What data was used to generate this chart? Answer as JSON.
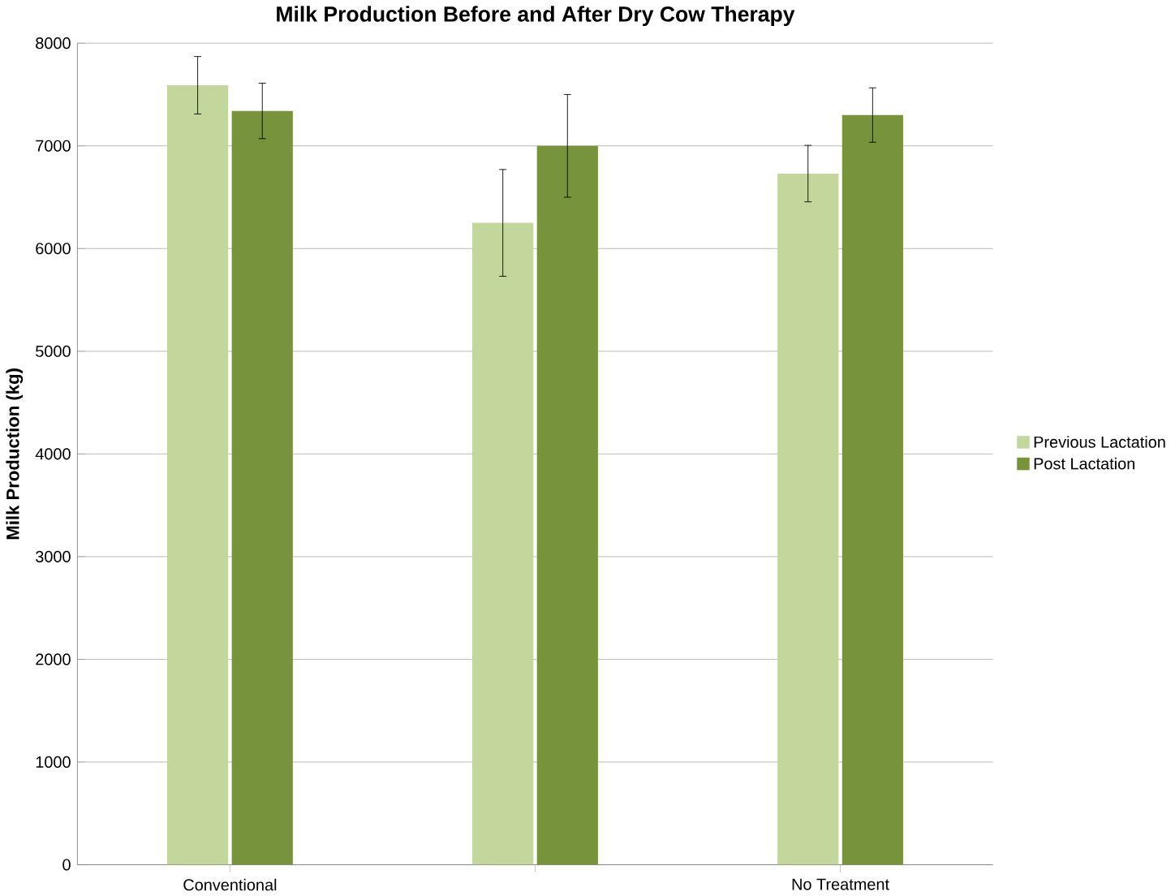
{
  "chart_data": {
    "type": "bar",
    "title": "Milk Production Before and After Dry Cow Therapy",
    "ylabel": "Milk Production (kg)",
    "categories": [
      "Conventional",
      null,
      "No Treatment"
    ],
    "series": [
      {
        "name": "Previous Lactation",
        "color": "#c3d69b",
        "values": [
          7590,
          6250,
          6730
        ],
        "errors": [
          280,
          520,
          275
        ]
      },
      {
        "name": "Post Lactation",
        "color": "#77933c",
        "values": [
          7340,
          7000,
          7300
        ],
        "errors": [
          270,
          500,
          265
        ]
      }
    ],
    "ylim": [
      0,
      8000
    ],
    "yticks": [
      0,
      1000,
      2000,
      3000,
      4000,
      5000,
      6000,
      7000,
      8000
    ],
    "grid": "y",
    "legend": "right"
  }
}
